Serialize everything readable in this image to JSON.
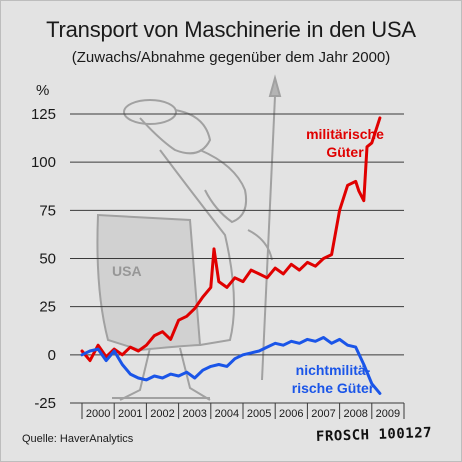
{
  "title": "Transport von Maschinerie in den USA",
  "subtitle": "(Zuwachs/Abnahme gegenüber dem Jahr 2000)",
  "unit": "%",
  "source": "Quelle: HaverAnalytics",
  "signature": "FROSCH 100127",
  "colors": {
    "military": "#e00000",
    "civil": "#1a55e8",
    "background": "#e3e3e3"
  },
  "chart_data": {
    "type": "line",
    "title": "Transport von Maschinerie in den USA",
    "subtitle": "(Zuwachs/Abnahme gegenüber dem Jahr 2000)",
    "ylabel": "%",
    "ylim": [
      -25,
      125
    ],
    "yticks": [
      -25,
      0,
      25,
      50,
      75,
      100,
      125
    ],
    "xlim": [
      2000,
      2010
    ],
    "xticks": [
      "2000",
      "2001",
      "2002",
      "2003",
      "2004",
      "2005",
      "2006",
      "2007",
      "2008",
      "2009"
    ],
    "grid": "horizontal",
    "legend": "inline labels",
    "series": [
      {
        "name": "militärische Güter",
        "label_lines": [
          "militärische",
          "Güter"
        ],
        "color": "#e00000",
        "points": [
          [
            2000.0,
            2
          ],
          [
            2000.25,
            -3
          ],
          [
            2000.5,
            5
          ],
          [
            2000.75,
            -1
          ],
          [
            2001.0,
            3
          ],
          [
            2001.25,
            0
          ],
          [
            2001.5,
            4
          ],
          [
            2001.75,
            2
          ],
          [
            2002.0,
            5
          ],
          [
            2002.25,
            10
          ],
          [
            2002.5,
            12
          ],
          [
            2002.75,
            8
          ],
          [
            2003.0,
            18
          ],
          [
            2003.25,
            20
          ],
          [
            2003.5,
            24
          ],
          [
            2003.75,
            30
          ],
          [
            2004.0,
            35
          ],
          [
            2004.1,
            55
          ],
          [
            2004.25,
            38
          ],
          [
            2004.5,
            35
          ],
          [
            2004.75,
            40
          ],
          [
            2005.0,
            38
          ],
          [
            2005.25,
            44
          ],
          [
            2005.5,
            42
          ],
          [
            2005.75,
            40
          ],
          [
            2006.0,
            45
          ],
          [
            2006.25,
            42
          ],
          [
            2006.5,
            47
          ],
          [
            2006.75,
            44
          ],
          [
            2007.0,
            48
          ],
          [
            2007.25,
            46
          ],
          [
            2007.5,
            50
          ],
          [
            2007.75,
            52
          ],
          [
            2008.0,
            75
          ],
          [
            2008.25,
            88
          ],
          [
            2008.5,
            90
          ],
          [
            2008.6,
            85
          ],
          [
            2008.75,
            80
          ],
          [
            2008.85,
            108
          ],
          [
            2009.0,
            110
          ],
          [
            2009.25,
            123
          ]
        ]
      },
      {
        "name": "nichtmilitärische Güter",
        "label_lines": [
          "nichtmilitä-",
          "rische Güter"
        ],
        "color": "#1a55e8",
        "points": [
          [
            2000.0,
            0
          ],
          [
            2000.25,
            2
          ],
          [
            2000.5,
            3
          ],
          [
            2000.75,
            -3
          ],
          [
            2001.0,
            2
          ],
          [
            2001.25,
            -5
          ],
          [
            2001.5,
            -10
          ],
          [
            2001.75,
            -12
          ],
          [
            2002.0,
            -13
          ],
          [
            2002.25,
            -11
          ],
          [
            2002.5,
            -12
          ],
          [
            2002.75,
            -10
          ],
          [
            2003.0,
            -11
          ],
          [
            2003.25,
            -9
          ],
          [
            2003.5,
            -12
          ],
          [
            2003.75,
            -8
          ],
          [
            2004.0,
            -6
          ],
          [
            2004.25,
            -5
          ],
          [
            2004.5,
            -6
          ],
          [
            2004.75,
            -2
          ],
          [
            2005.0,
            0
          ],
          [
            2005.25,
            1
          ],
          [
            2005.5,
            2
          ],
          [
            2005.75,
            4
          ],
          [
            2006.0,
            6
          ],
          [
            2006.25,
            5
          ],
          [
            2006.5,
            7
          ],
          [
            2006.75,
            6
          ],
          [
            2007.0,
            8
          ],
          [
            2007.25,
            7
          ],
          [
            2007.5,
            9
          ],
          [
            2007.75,
            6
          ],
          [
            2008.0,
            8
          ],
          [
            2008.25,
            5
          ],
          [
            2008.5,
            4
          ],
          [
            2008.75,
            -5
          ],
          [
            2009.0,
            -15
          ],
          [
            2009.25,
            -20
          ]
        ]
      }
    ]
  }
}
